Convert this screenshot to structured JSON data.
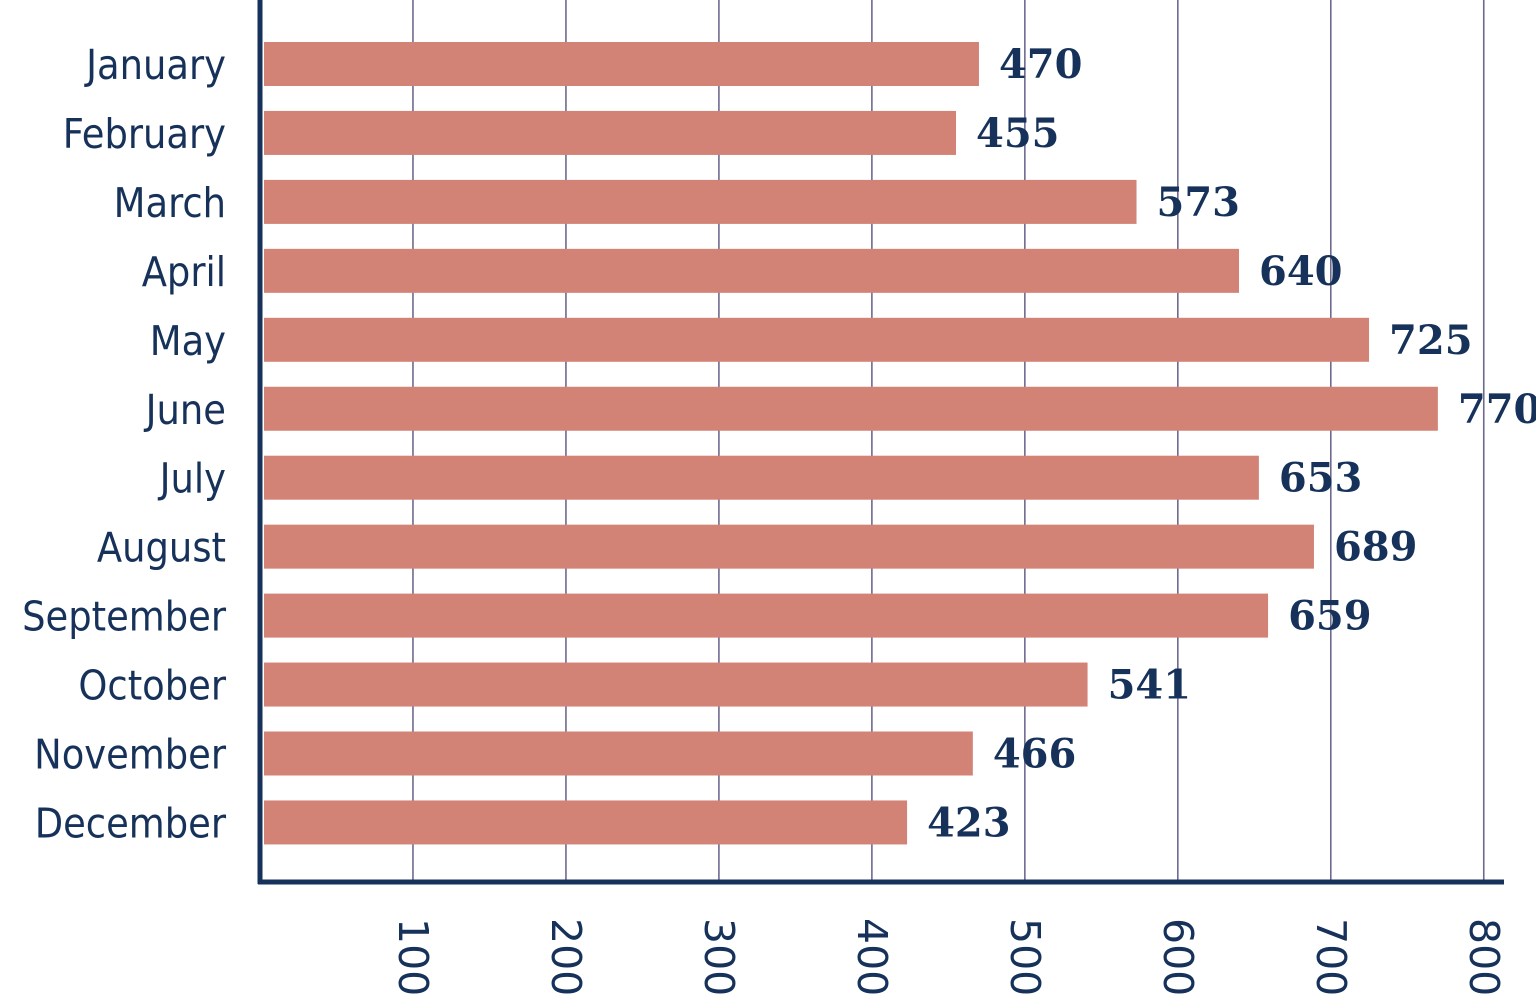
{
  "chart_data": {
    "type": "bar",
    "orientation": "horizontal",
    "title": "",
    "xlabel": "",
    "ylabel": "",
    "categories": [
      "January",
      "February",
      "March",
      "April",
      "May",
      "June",
      "July",
      "August",
      "September",
      "October",
      "November",
      "December"
    ],
    "values": [
      470,
      455,
      573,
      640,
      725,
      770,
      653,
      689,
      659,
      541,
      466,
      423
    ],
    "value_labels": [
      "470",
      "455",
      "573",
      "640",
      "725",
      "770",
      "653",
      "689",
      "659",
      "541",
      "466",
      "423"
    ],
    "xlim": [
      0,
      815
    ],
    "xticks": [
      100,
      200,
      300,
      400,
      500,
      600,
      700,
      800
    ],
    "xtick_labels": [
      "100",
      "200",
      "300",
      "400",
      "500",
      "600",
      "700",
      "800"
    ],
    "xtick_label_rotation": "90 degrees, reading top-to-bottom",
    "grid": "vertical lines at x ticks",
    "legend": "none",
    "colors": {
      "bar": "#d38376",
      "axis": "#17325a",
      "text": "#17325a",
      "grid": "#6e6a8f"
    }
  }
}
